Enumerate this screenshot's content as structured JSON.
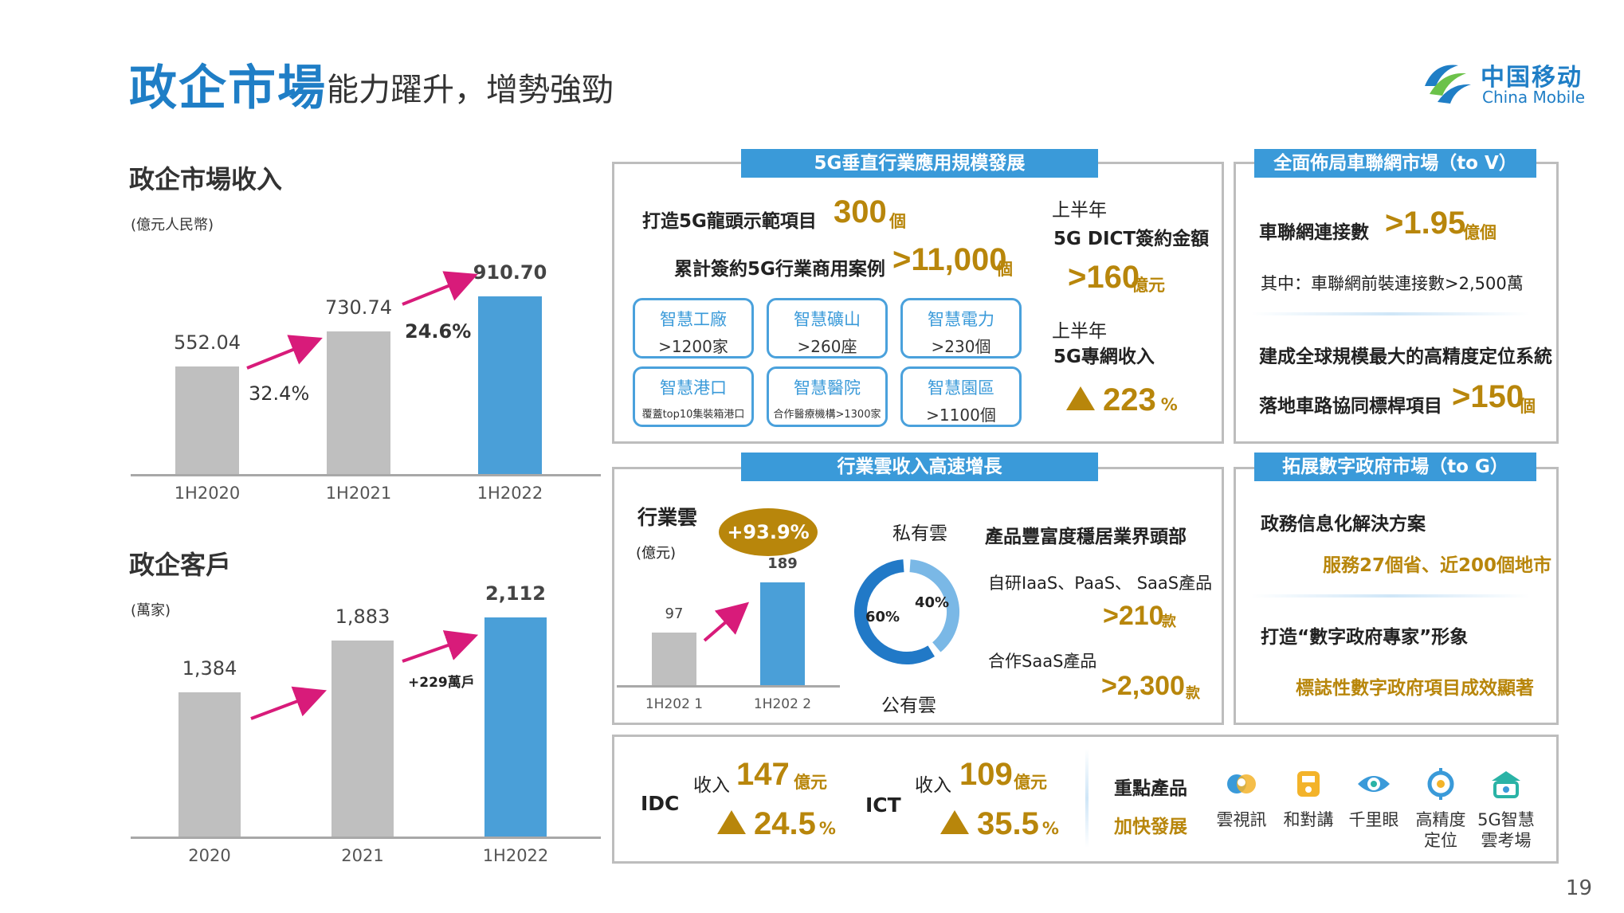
{
  "header": {
    "title_main": "政企市場",
    "title_sub": "能力躍升，增勢強勁",
    "logo_cn": "中国移动",
    "logo_en": "China Mobile"
  },
  "revenue": {
    "title": "政企市場收入",
    "unit": "(億元人民幣)"
  },
  "customers": {
    "title": "政企客戶",
    "unit": "(萬家)",
    "increment": "+229萬戶"
  },
  "chart_data": [
    {
      "type": "bar",
      "title": "政企市場收入",
      "unit": "(億元人民幣)",
      "categories": [
        "1H2020",
        "1H2021",
        "1H2022"
      ],
      "values": [
        552.04,
        730.74,
        910.7
      ],
      "value_labels": [
        "552.04",
        "730.74",
        "910.70"
      ],
      "growth_labels": [
        "32.4%",
        "24.6%"
      ],
      "colors": [
        "#bfbfbf",
        "#bfbfbf",
        "#4a9fd8"
      ],
      "ylim": [
        0,
        1000
      ]
    },
    {
      "type": "bar",
      "title": "政企客戶",
      "unit": "(萬家)",
      "categories": [
        "2020",
        "2021",
        "1H2022"
      ],
      "values": [
        1384,
        1883,
        2112
      ],
      "value_labels": [
        "1,384",
        "1,883",
        "2,112"
      ],
      "growth_labels": [
        "+229萬戶"
      ],
      "colors": [
        "#bfbfbf",
        "#bfbfbf",
        "#4a9fd8"
      ],
      "ylim": [
        0,
        2300
      ]
    },
    {
      "type": "bar",
      "title": "行業雲",
      "unit": "(億元)",
      "categories": [
        "1H2021",
        "1H2022"
      ],
      "category_labels": [
        "1H202 1",
        "1H202 2"
      ],
      "values": [
        97,
        189
      ],
      "growth_label": "+93.9%",
      "colors": [
        "#bfbfbf",
        "#4a9fd8"
      ],
      "ylim": [
        0,
        220
      ]
    },
    {
      "type": "pie",
      "labels": [
        "私有雲",
        "公有雲"
      ],
      "values": [
        40,
        60
      ],
      "value_labels": [
        "40%",
        "60%"
      ],
      "colors": [
        "#7ab8e6",
        "#2179c7"
      ]
    }
  ],
  "panel_5g": {
    "title": "5G垂直行業應用規模發展",
    "line1_label": "打造5G龍頭示範項目",
    "line1_value": "300",
    "line1_unit": "個",
    "line2_label": "累計簽約5G行業商用案例",
    "line2_value": ">11,000",
    "line2_unit": "個",
    "tiles": [
      {
        "name": "智慧工廠",
        "value": ">1200家"
      },
      {
        "name": "智慧礦山",
        "value": ">260座"
      },
      {
        "name": "智慧電力",
        "value": ">230個"
      },
      {
        "name": "智慧港口",
        "value": "覆蓋top10集裝箱港口"
      },
      {
        "name": "智慧醫院",
        "value": "合作醫療機構>1300家"
      },
      {
        "name": "智慧園區",
        "value": ">1100個"
      }
    ],
    "dict_period": "上半年",
    "dict_label": "5G DICT簽約金額",
    "dict_value": ">160",
    "dict_unit": "億元",
    "private_period": "上半年",
    "private_label": "5G專網收入",
    "private_growth": "223",
    "private_unit": "%"
  },
  "panel_v": {
    "title": "全面佈局車聯網市場（to V）",
    "conn_label": "車聯網連接數",
    "conn_value": ">1.95",
    "conn_unit": "億個",
    "conn_note": "其中：車聯網前裝連接數>2,500萬",
    "positioning": "建成全球規模最大的高精度定位系統",
    "road_label": "落地車路協同標桿項目",
    "road_value": ">150",
    "road_unit": "個"
  },
  "panel_cloud": {
    "title": "行業雲收入高速增長",
    "label": "行業雲",
    "unit": "(億元)",
    "v1": "97",
    "v2": "189",
    "x1": "1H202 1",
    "x2": "1H202 2",
    "growth": "+93.9%",
    "private_label": "私有雲",
    "public_label": "公有雲",
    "private_pct": "40%",
    "public_pct": "60%",
    "product_title": "產品豐富度穩居業界頭部",
    "self_label": "自研IaaS、PaaS、 SaaS產品",
    "self_value": ">210",
    "self_unit": "款",
    "partner_label": "合作SaaS產品",
    "partner_value": ">2,300",
    "partner_unit": "款"
  },
  "panel_g": {
    "title": "拓展數字政府市場（to G）",
    "line1": "政務信息化解決方案",
    "line1_highlight": "服務27個省、近200個地市",
    "line2": "打造“數字政府專家”形象",
    "line2_highlight": "標誌性數字政府項目成效顯著"
  },
  "panel_idc": {
    "idc_label": "IDC",
    "idc_rev_label": "收入",
    "idc_rev_value": "147",
    "idc_rev_unit": "億元",
    "idc_growth": "24.5",
    "idc_growth_unit": "%",
    "ict_label": "ICT",
    "ict_rev_label": "收入",
    "ict_rev_value": "109",
    "ict_rev_unit": "億元",
    "ict_growth": "35.5",
    "ict_growth_unit": "%",
    "key_products": "重點產品",
    "accelerate": "加快發展",
    "products": [
      {
        "icon": "cloud-video-icon",
        "label": "雲視訊"
      },
      {
        "icon": "hedijiang-icon",
        "label": "和對講"
      },
      {
        "icon": "eye-icon",
        "label": "千里眼"
      },
      {
        "icon": "positioning-icon",
        "label": "高精度定位"
      },
      {
        "icon": "exam-room-icon",
        "label": "5G智慧雲考場"
      }
    ],
    "products_display": [
      "雲視訊",
      "和對講",
      "千里眼",
      "高精度\n定位",
      "5G智慧\n雲考場"
    ]
  },
  "page_number": "19"
}
